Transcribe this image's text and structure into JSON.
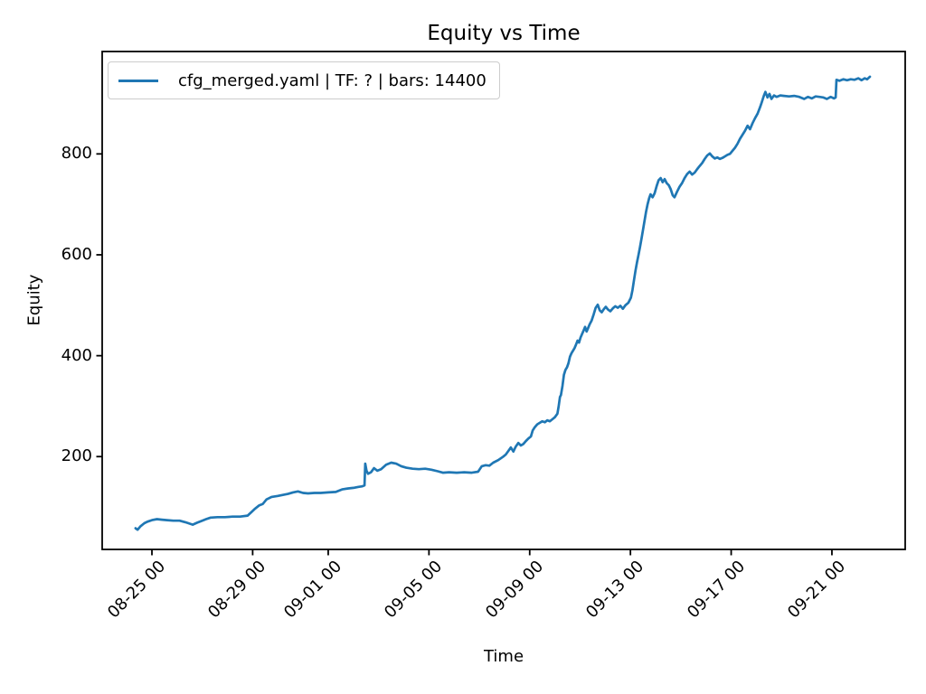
{
  "figure": {
    "background": "#ffffff",
    "title": "Equity vs Time",
    "xlabel": "Time",
    "ylabel": "Equity"
  },
  "legend": {
    "label": "cfg_merged.yaml | TF: ? | bars: 14400",
    "line_color": "#1f77b4"
  },
  "colors": {
    "line": "#1f77b4",
    "axis": "#000000",
    "legend_border": "#cccccc",
    "background": "#ffffff"
  },
  "chart_data": {
    "type": "line",
    "title": "Equity vs Time",
    "xlabel": "Time",
    "ylabel": "Equity",
    "grid": false,
    "legend_position": "upper left",
    "x_unit": "days since 08-24 00:00 (x tick labels are MM-DD HH dates)",
    "xlim": [
      -0.975,
      30.91
    ],
    "ylim": [
      16,
      1003
    ],
    "x_ticks": [
      {
        "pos": 1,
        "label": "08-25 00"
      },
      {
        "pos": 5,
        "label": "08-29 00"
      },
      {
        "pos": 8,
        "label": "09-01 00"
      },
      {
        "pos": 12,
        "label": "09-05 00"
      },
      {
        "pos": 16,
        "label": "09-09 00"
      },
      {
        "pos": 20,
        "label": "09-13 00"
      },
      {
        "pos": 24,
        "label": "09-17 00"
      },
      {
        "pos": 28,
        "label": "09-21 00"
      }
    ],
    "y_ticks": [
      {
        "pos": 200,
        "label": "200"
      },
      {
        "pos": 400,
        "label": "400"
      },
      {
        "pos": 600,
        "label": "600"
      },
      {
        "pos": 800,
        "label": "800"
      }
    ],
    "series": [
      {
        "name": "cfg_merged.yaml | TF: ? | bars: 14400",
        "color": "#1f77b4",
        "line_width": 2.7,
        "points": [
          [
            0.35,
            58
          ],
          [
            0.43,
            55
          ],
          [
            0.55,
            62
          ],
          [
            0.7,
            68
          ],
          [
            0.82,
            71
          ],
          [
            1.0,
            74
          ],
          [
            1.2,
            76
          ],
          [
            1.4,
            75
          ],
          [
            1.6,
            74
          ],
          [
            1.85,
            73
          ],
          [
            2.1,
            73
          ],
          [
            2.33,
            70
          ],
          [
            2.5,
            67
          ],
          [
            2.62,
            65
          ],
          [
            2.8,
            69
          ],
          [
            2.95,
            72
          ],
          [
            3.15,
            76
          ],
          [
            3.33,
            79
          ],
          [
            3.6,
            80
          ],
          [
            3.9,
            80
          ],
          [
            4.2,
            81
          ],
          [
            4.5,
            81
          ],
          [
            4.8,
            83
          ],
          [
            4.95,
            90
          ],
          [
            5.1,
            97
          ],
          [
            5.25,
            103
          ],
          [
            5.4,
            106
          ],
          [
            5.55,
            115
          ],
          [
            5.75,
            120
          ],
          [
            6.0,
            122
          ],
          [
            6.2,
            124
          ],
          [
            6.4,
            126
          ],
          [
            6.6,
            129
          ],
          [
            6.8,
            131
          ],
          [
            7.0,
            128
          ],
          [
            7.2,
            127
          ],
          [
            7.45,
            128
          ],
          [
            7.7,
            128
          ],
          [
            8.0,
            129
          ],
          [
            8.3,
            130
          ],
          [
            8.55,
            135
          ],
          [
            8.8,
            137
          ],
          [
            9.0,
            138
          ],
          [
            9.2,
            140
          ],
          [
            9.35,
            141
          ],
          [
            9.44,
            143
          ],
          [
            9.47,
            186
          ],
          [
            9.52,
            172
          ],
          [
            9.58,
            166
          ],
          [
            9.7,
            169
          ],
          [
            9.82,
            177
          ],
          [
            9.95,
            172
          ],
          [
            10.1,
            175
          ],
          [
            10.3,
            184
          ],
          [
            10.5,
            188
          ],
          [
            10.7,
            186
          ],
          [
            10.9,
            181
          ],
          [
            11.1,
            178
          ],
          [
            11.35,
            176
          ],
          [
            11.6,
            175
          ],
          [
            11.85,
            176
          ],
          [
            12.1,
            174
          ],
          [
            12.35,
            171
          ],
          [
            12.55,
            168
          ],
          [
            12.8,
            169
          ],
          [
            13.1,
            168
          ],
          [
            13.4,
            169
          ],
          [
            13.7,
            168
          ],
          [
            13.95,
            170
          ],
          [
            14.1,
            181
          ],
          [
            14.25,
            183
          ],
          [
            14.4,
            182
          ],
          [
            14.55,
            188
          ],
          [
            14.75,
            193
          ],
          [
            14.95,
            200
          ],
          [
            15.05,
            204
          ],
          [
            15.15,
            211
          ],
          [
            15.25,
            218
          ],
          [
            15.35,
            210
          ],
          [
            15.45,
            220
          ],
          [
            15.55,
            227
          ],
          [
            15.65,
            222
          ],
          [
            15.75,
            225
          ],
          [
            15.85,
            231
          ],
          [
            15.95,
            236
          ],
          [
            16.05,
            240
          ],
          [
            16.12,
            252
          ],
          [
            16.2,
            258
          ],
          [
            16.3,
            264
          ],
          [
            16.4,
            267
          ],
          [
            16.5,
            270
          ],
          [
            16.6,
            268
          ],
          [
            16.7,
            272
          ],
          [
            16.8,
            270
          ],
          [
            16.9,
            274
          ],
          [
            17.0,
            278
          ],
          [
            17.1,
            285
          ],
          [
            17.15,
            300
          ],
          [
            17.2,
            318
          ],
          [
            17.24,
            322
          ],
          [
            17.3,
            340
          ],
          [
            17.36,
            362
          ],
          [
            17.42,
            372
          ],
          [
            17.48,
            377
          ],
          [
            17.54,
            385
          ],
          [
            17.6,
            398
          ],
          [
            17.66,
            405
          ],
          [
            17.72,
            410
          ],
          [
            17.78,
            415
          ],
          [
            17.84,
            422
          ],
          [
            17.9,
            430
          ],
          [
            17.96,
            426
          ],
          [
            18.02,
            436
          ],
          [
            18.08,
            443
          ],
          [
            18.14,
            450
          ],
          [
            18.2,
            457
          ],
          [
            18.26,
            448
          ],
          [
            18.32,
            455
          ],
          [
            18.38,
            462
          ],
          [
            18.46,
            470
          ],
          [
            18.54,
            482
          ],
          [
            18.62,
            495
          ],
          [
            18.7,
            501
          ],
          [
            18.78,
            490
          ],
          [
            18.86,
            486
          ],
          [
            18.94,
            492
          ],
          [
            19.02,
            497
          ],
          [
            19.1,
            492
          ],
          [
            19.2,
            488
          ],
          [
            19.3,
            494
          ],
          [
            19.4,
            498
          ],
          [
            19.5,
            495
          ],
          [
            19.6,
            499
          ],
          [
            19.7,
            493
          ],
          [
            19.8,
            500
          ],
          [
            19.92,
            505
          ],
          [
            20.02,
            515
          ],
          [
            20.08,
            530
          ],
          [
            20.14,
            550
          ],
          [
            20.2,
            568
          ],
          [
            20.26,
            585
          ],
          [
            20.32,
            600
          ],
          [
            20.38,
            615
          ],
          [
            20.44,
            632
          ],
          [
            20.5,
            650
          ],
          [
            20.56,
            668
          ],
          [
            20.62,
            685
          ],
          [
            20.68,
            700
          ],
          [
            20.74,
            712
          ],
          [
            20.8,
            720
          ],
          [
            20.88,
            714
          ],
          [
            20.96,
            722
          ],
          [
            21.04,
            736
          ],
          [
            21.12,
            748
          ],
          [
            21.2,
            752
          ],
          [
            21.28,
            744
          ],
          [
            21.36,
            750
          ],
          [
            21.44,
            742
          ],
          [
            21.52,
            738
          ],
          [
            21.6,
            730
          ],
          [
            21.68,
            718
          ],
          [
            21.75,
            714
          ],
          [
            21.85,
            725
          ],
          [
            21.95,
            735
          ],
          [
            22.05,
            742
          ],
          [
            22.15,
            752
          ],
          [
            22.25,
            760
          ],
          [
            22.35,
            765
          ],
          [
            22.45,
            759
          ],
          [
            22.55,
            763
          ],
          [
            22.65,
            770
          ],
          [
            22.75,
            776
          ],
          [
            22.85,
            782
          ],
          [
            22.95,
            790
          ],
          [
            23.05,
            797
          ],
          [
            23.15,
            801
          ],
          [
            23.25,
            795
          ],
          [
            23.35,
            791
          ],
          [
            23.45,
            793
          ],
          [
            23.55,
            790
          ],
          [
            23.65,
            792
          ],
          [
            23.75,
            795
          ],
          [
            23.85,
            798
          ],
          [
            23.95,
            800
          ],
          [
            24.05,
            806
          ],
          [
            24.15,
            812
          ],
          [
            24.25,
            820
          ],
          [
            24.35,
            830
          ],
          [
            24.45,
            838
          ],
          [
            24.55,
            846
          ],
          [
            24.65,
            856
          ],
          [
            24.75,
            849
          ],
          [
            24.85,
            861
          ],
          [
            24.95,
            871
          ],
          [
            25.05,
            880
          ],
          [
            25.15,
            893
          ],
          [
            25.22,
            903
          ],
          [
            25.3,
            916
          ],
          [
            25.36,
            923
          ],
          [
            25.44,
            912
          ],
          [
            25.52,
            919
          ],
          [
            25.6,
            909
          ],
          [
            25.7,
            916
          ],
          [
            25.8,
            913
          ],
          [
            25.95,
            916
          ],
          [
            26.1,
            915
          ],
          [
            26.3,
            914
          ],
          [
            26.5,
            915
          ],
          [
            26.7,
            913
          ],
          [
            26.9,
            909
          ],
          [
            27.05,
            913
          ],
          [
            27.2,
            910
          ],
          [
            27.35,
            914
          ],
          [
            27.5,
            913
          ],
          [
            27.65,
            912
          ],
          [
            27.8,
            909
          ],
          [
            27.95,
            913
          ],
          [
            28.08,
            910
          ],
          [
            28.15,
            912
          ],
          [
            28.18,
            947
          ],
          [
            28.3,
            945
          ],
          [
            28.45,
            948
          ],
          [
            28.6,
            946
          ],
          [
            28.75,
            948
          ],
          [
            28.9,
            947
          ],
          [
            29.05,
            950
          ],
          [
            29.18,
            946
          ],
          [
            29.3,
            950
          ],
          [
            29.4,
            948
          ],
          [
            29.51,
            953
          ]
        ]
      }
    ]
  }
}
